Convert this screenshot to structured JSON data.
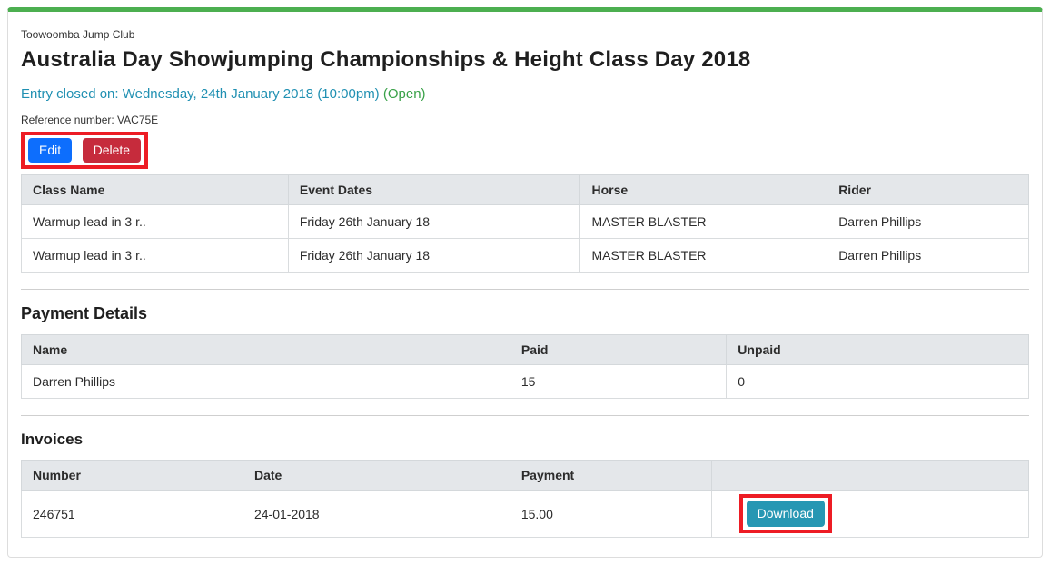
{
  "colors": {
    "panel_top_bar": "#4caf50",
    "edit_button": "#0d6efd",
    "delete_button": "#c62b3c",
    "download_button": "#2697b3",
    "annotation_border": "#ed1c24",
    "entry_closed_text": "#2090b2",
    "open_status_text": "#38a147",
    "table_header_bg": "#e4e7ea"
  },
  "header": {
    "club": "Toowoomba Jump Club",
    "title": "Australia Day Showjumping Championships & Height Class Day 2018",
    "entry_closed": "Entry closed on: Wednesday, 24th January 2018 (10:00pm)",
    "entry_status": "(Open)",
    "reference": "Reference number: VAC75E"
  },
  "actions": {
    "edit": "Edit",
    "delete": "Delete"
  },
  "entries_table": {
    "headers": [
      "Class Name",
      "Event Dates",
      "Horse",
      "Rider"
    ],
    "rows": [
      {
        "class_name": "Warmup lead in 3 r..",
        "event_dates": "Friday 26th January 18",
        "horse": "MASTER BLASTER",
        "rider": "Darren Phillips"
      },
      {
        "class_name": "Warmup lead in 3 r..",
        "event_dates": "Friday 26th January 18",
        "horse": "MASTER BLASTER",
        "rider": "Darren Phillips"
      }
    ]
  },
  "payment_details": {
    "heading": "Payment Details",
    "headers": [
      "Name",
      "Paid",
      "Unpaid"
    ],
    "rows": [
      {
        "name": "Darren Phillips",
        "paid": "15",
        "unpaid": "0"
      }
    ]
  },
  "invoices": {
    "heading": "Invoices",
    "headers": [
      "Number",
      "Date",
      "Payment",
      ""
    ],
    "rows": [
      {
        "number": "246751",
        "date": "24-01-2018",
        "payment": "15.00",
        "download_label": "Download"
      }
    ]
  }
}
